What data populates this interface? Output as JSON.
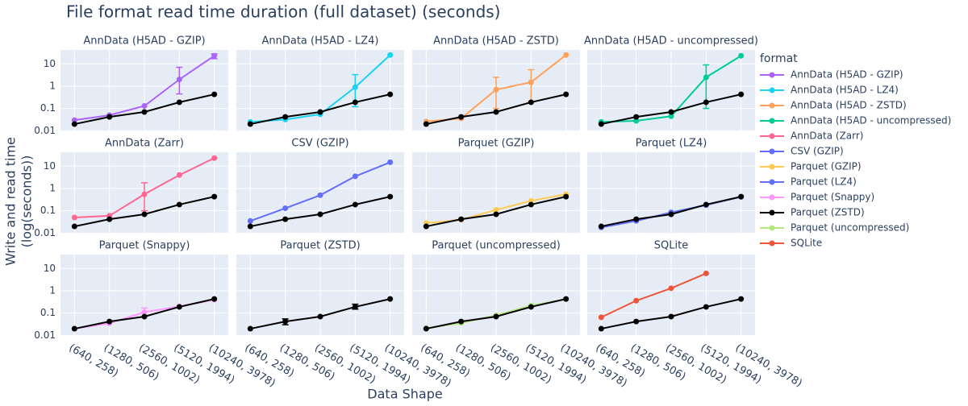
{
  "chart_data": {
    "type": "line",
    "title": "File format read time duration (full dataset) (seconds)",
    "x_label": "Data Shape",
    "y_label": [
      "Write and read time",
      "(log(seconds))"
    ],
    "legend_title": "format",
    "baseline": "Parquet (ZSTD)",
    "log_y": true,
    "grid": true,
    "categories": [
      "(640, 258)",
      "(1280, 506)",
      "(2560, 1002)",
      "(5120, 1994)",
      "(10240, 3978)"
    ],
    "ylim": [
      0.0095,
      42
    ],
    "yticks": [
      0.01,
      0.1,
      1,
      10
    ],
    "series": [
      {
        "name": "AnnData (H5AD - GZIP)",
        "color": "#ab63fa",
        "values": [
          0.03,
          0.05,
          0.13,
          2,
          23
        ],
        "error_plus": [
          null,
          null,
          null,
          5,
          5
        ],
        "error_minus": [
          null,
          null,
          null,
          1.55,
          6
        ]
      },
      {
        "name": "AnnData (H5AD - LZ4)",
        "color": "#19d3f3",
        "values": [
          0.025,
          0.032,
          0.055,
          0.9,
          25
        ],
        "error_plus": [
          null,
          null,
          null,
          2.4,
          null
        ],
        "error_minus": [
          null,
          null,
          null,
          0.78,
          null
        ]
      },
      {
        "name": "AnnData (H5AD - ZSTD)",
        "color": "#ffa15a",
        "values": [
          0.026,
          0.036,
          0.7,
          1.5,
          25
        ],
        "error_plus": [
          null,
          null,
          1.8,
          4,
          null
        ],
        "error_minus": [
          null,
          null,
          0.6,
          1.3,
          null
        ]
      },
      {
        "name": "AnnData (H5AD - uncompressed)",
        "color": "#00cc96",
        "values": [
          0.025,
          0.028,
          0.045,
          2.5,
          23
        ],
        "error_plus": [
          null,
          null,
          null,
          6.5,
          null
        ],
        "error_minus": [
          null,
          null,
          null,
          2.4,
          null
        ]
      },
      {
        "name": "AnnData (Zarr)",
        "color": "#ff6692",
        "values": [
          0.05,
          0.06,
          0.55,
          4,
          23
        ],
        "error_plus": [
          null,
          null,
          1.25,
          null,
          null
        ],
        "error_minus": [
          null,
          null,
          0.45,
          null,
          null
        ]
      },
      {
        "name": "CSV (GZIP)",
        "color": "#636efa",
        "values": [
          0.035,
          0.13,
          0.5,
          3.5,
          15
        ],
        "error_plus": [
          null,
          null,
          null,
          null,
          null
        ],
        "error_minus": [
          null,
          null,
          null,
          null,
          null
        ]
      },
      {
        "name": "Parquet (GZIP)",
        "color": "#fecb52",
        "values": [
          0.028,
          0.04,
          0.11,
          0.28,
          0.55
        ],
        "error_plus": [
          null,
          null,
          null,
          null,
          null
        ],
        "error_minus": [
          null,
          null,
          null,
          null,
          null
        ]
      },
      {
        "name": "Parquet (LZ4)",
        "color": "#636efa",
        "values": [
          0.018,
          0.035,
          0.085,
          0.18,
          0.42
        ],
        "error_plus": [
          null,
          null,
          null,
          null,
          null
        ],
        "error_minus": [
          null,
          null,
          null,
          null,
          null
        ]
      },
      {
        "name": "Parquet (Snappy)",
        "color": "#ff97ff",
        "values": [
          0.02,
          0.035,
          0.11,
          0.2,
          0.4
        ],
        "error_plus": [
          null,
          null,
          0.06,
          null,
          null
        ],
        "error_minus": [
          null,
          null,
          0.04,
          null,
          null
        ]
      },
      {
        "name": "Parquet (ZSTD)",
        "color": "#000000",
        "values": [
          0.02,
          0.042,
          0.07,
          0.19,
          0.43
        ],
        "error_plus": [
          null,
          0.013,
          null,
          0.06,
          null
        ],
        "error_minus": [
          null,
          0.012,
          null,
          0.04,
          null
        ]
      },
      {
        "name": "Parquet (uncompressed)",
        "color": "#b6e880",
        "values": [
          0.021,
          0.036,
          0.08,
          0.22,
          0.42
        ],
        "error_plus": [
          null,
          null,
          null,
          null,
          null
        ],
        "error_minus": [
          null,
          null,
          null,
          null,
          null
        ]
      },
      {
        "name": "SQLite",
        "color": "#ef553b",
        "values": [
          0.065,
          0.36,
          1.3,
          6,
          null
        ],
        "error_plus": [
          null,
          null,
          null,
          null,
          null
        ],
        "error_minus": [
          null,
          null,
          null,
          null,
          null
        ]
      }
    ]
  }
}
